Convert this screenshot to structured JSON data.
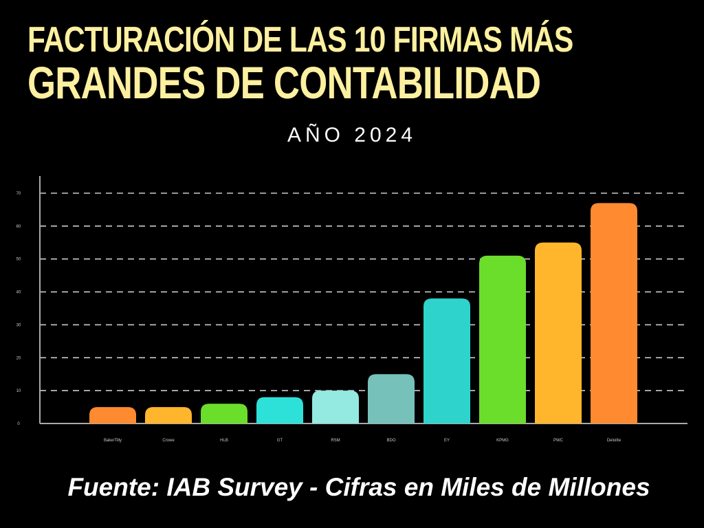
{
  "title_line1": "FACTURACIÓN DE LAS 10 FIRMAS MÁS",
  "title_line2": "GRANDES DE CONTABILIDAD",
  "subtitle": "AÑO 2024",
  "source": "Fuente: IAB Survey - Cifras en Miles de Millones",
  "colors": {
    "background": "#000000",
    "title": "#fdf0a0",
    "axis": "#aaaaaa",
    "grid": "#cccccc"
  },
  "chart_data": {
    "type": "bar",
    "categories": [
      "BakerTilly",
      "Crowe",
      "HLB",
      "GT",
      "RSM",
      "BDO",
      "EY",
      "KPMG",
      "PWC",
      "Deloitte"
    ],
    "values": [
      5,
      5,
      6,
      8,
      10,
      15,
      38,
      51,
      55,
      67
    ],
    "bar_colors": [
      "#ff8a30",
      "#ffb62c",
      "#6bdd2b",
      "#2de0d8",
      "#94e9e1",
      "#76c2bb",
      "#2ed3cc",
      "#6bdd2b",
      "#ffb62c",
      "#ff8a30"
    ],
    "yticks": [
      0,
      10,
      20,
      30,
      40,
      50,
      60,
      70
    ],
    "ylim": [
      0,
      70
    ],
    "grid": true,
    "grid_style": "dashed",
    "legend": "none"
  }
}
